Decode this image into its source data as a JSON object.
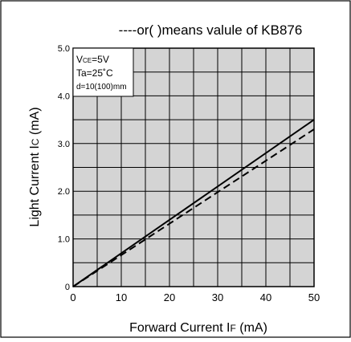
{
  "chart_data": {
    "type": "line",
    "title": "----or(  )means valule of KB876",
    "xlabel": {
      "main": "Forward Current  I",
      "sub": "F",
      "unit": "  (mA)"
    },
    "ylabel": {
      "main": "Light Current  I",
      "sub": "C",
      "unit": " (mA)"
    },
    "xlim": [
      0,
      50
    ],
    "ylim": [
      0,
      5.0
    ],
    "grid": true,
    "x_major_ticks": [
      0,
      10,
      20,
      30,
      40,
      50
    ],
    "x_tick_labels": [
      "0",
      "10",
      "20",
      "30",
      "40",
      "50"
    ],
    "x_minor_ticks": [
      5,
      15,
      25,
      35,
      45
    ],
    "y_major_ticks": [
      0,
      1.0,
      2.0,
      3.0,
      4.0,
      5.0
    ],
    "y_tick_labels": [
      "0",
      "1.0",
      "2.0",
      "3.0",
      "4.0",
      "5.0"
    ],
    "y_minor_ticks": [
      0.5,
      1.5,
      2.5,
      3.5,
      4.5
    ],
    "conditions": {
      "vce": {
        "main": "V",
        "sub": "CE",
        "value": "=5V"
      },
      "ta": "Ta=25˚C",
      "d": "d=10(100)mm"
    },
    "series": [
      {
        "style": "solid",
        "x": [
          0,
          50
        ],
        "y": [
          0,
          3.5
        ]
      },
      {
        "style": "dashed",
        "x": [
          0,
          50
        ],
        "y": [
          0,
          3.3
        ]
      }
    ]
  },
  "colors": {
    "plot_bg": "#d4d4d4",
    "grid": "#000000",
    "line": "#000000",
    "box_bg": "#ffffff"
  }
}
